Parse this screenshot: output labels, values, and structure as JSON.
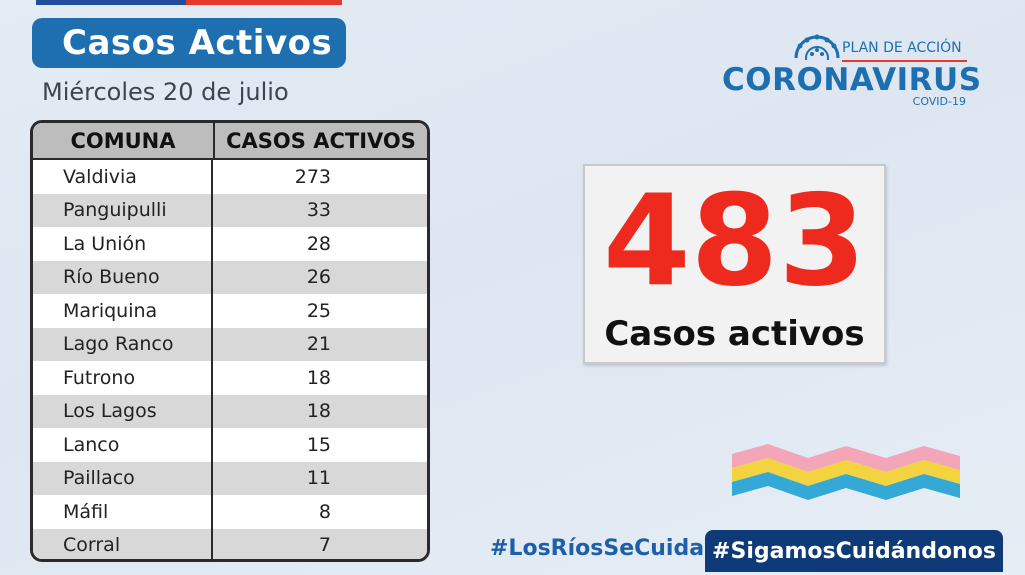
{
  "header": {
    "title": "Casos Activos",
    "date": "Miércoles 20 de julio"
  },
  "logo": {
    "plan": "PLAN DE ACCIÓN",
    "name": "CORONAVIRUS",
    "sub": "COVID-19"
  },
  "table": {
    "headers": [
      "COMUNA",
      "CASOS ACTIVOS"
    ],
    "rows": [
      {
        "comuna": "Valdivia",
        "casos": "273"
      },
      {
        "comuna": "Panguipulli",
        "casos": "33"
      },
      {
        "comuna": "La Unión",
        "casos": "28"
      },
      {
        "comuna": "Río Bueno",
        "casos": "26"
      },
      {
        "comuna": "Mariquina",
        "casos": "25"
      },
      {
        "comuna": "Lago Ranco",
        "casos": "21"
      },
      {
        "comuna": "Futrono",
        "casos": "18"
      },
      {
        "comuna": "Los Lagos",
        "casos": "18"
      },
      {
        "comuna": "Lanco",
        "casos": "15"
      },
      {
        "comuna": "Paillaco",
        "casos": "11"
      },
      {
        "comuna": "Máfil",
        "casos": "8"
      },
      {
        "comuna": "Corral",
        "casos": "7"
      }
    ]
  },
  "total": {
    "value": "483",
    "label": "Casos activos"
  },
  "footer": {
    "hashtag_left": "#LosRíosSeCuida",
    "hashtag_right": "#SigamosCuidándonos"
  },
  "colors": {
    "brand_blue": "#1d6fb0",
    "accent_red": "#ee2a1e",
    "navy": "#0e3b78"
  }
}
